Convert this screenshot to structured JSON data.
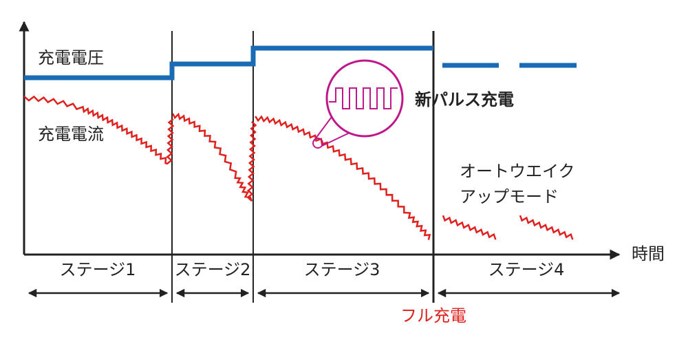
{
  "labels": {
    "voltage": "充電電圧",
    "current": "充電電流",
    "pulse": "新パルス充電",
    "auto_wake": [
      "オートウエイク",
      "アップモード"
    ],
    "time_axis": "時間",
    "full_charge": "フル充電"
  },
  "stages": [
    "ステージ1",
    "ステージ2",
    "ステージ3",
    "ステージ4"
  ]
}
